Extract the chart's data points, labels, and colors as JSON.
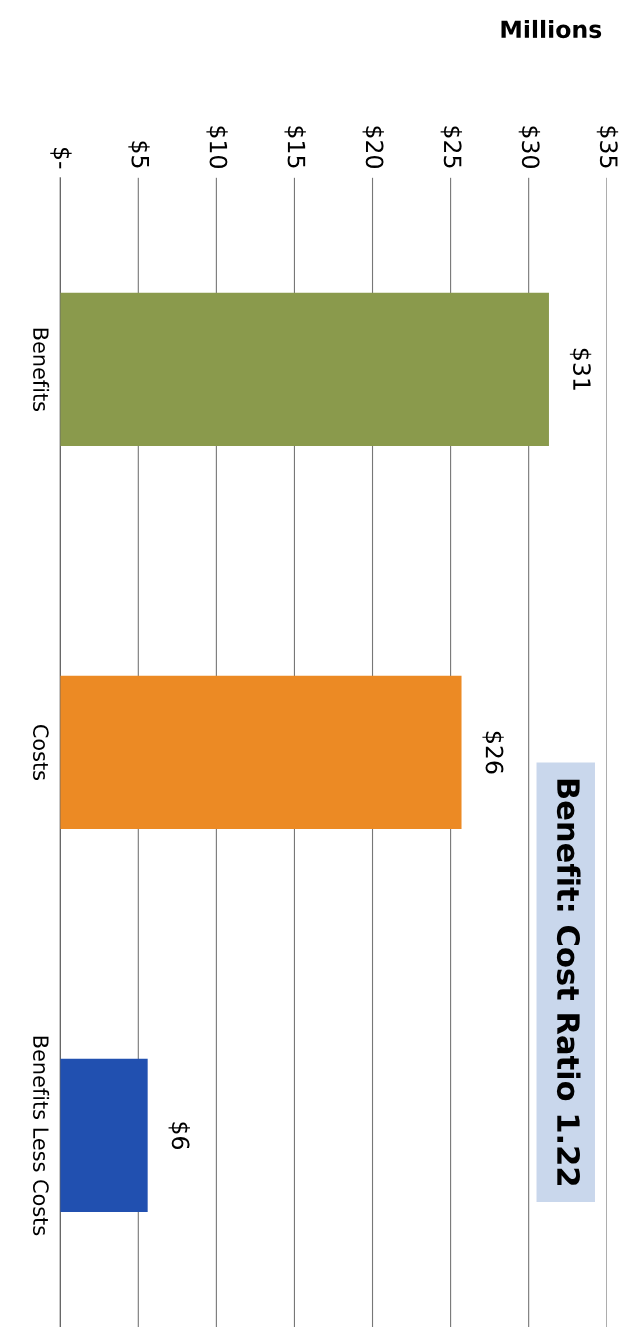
{
  "chart_data": {
    "type": "bar",
    "orientation": "horizontal",
    "xlabel": "Millions",
    "categories": [
      "Benefits",
      "Costs",
      "Benefits Less Costs"
    ],
    "values": [
      31.3,
      25.7,
      5.6
    ],
    "colors": [
      "#8a9a4c",
      "#ec8a24",
      "#2150b0"
    ],
    "value_labels": [
      "$31",
      "$26",
      "$6"
    ],
    "xlim": [
      0,
      35
    ],
    "xticks": [
      {
        "value": 0,
        "label": "$-"
      },
      {
        "value": 5,
        "label": "$5"
      },
      {
        "value": 10,
        "label": "$10"
      },
      {
        "value": 15,
        "label": "$15"
      },
      {
        "value": 20,
        "label": "$20"
      },
      {
        "value": 25,
        "label": "$25"
      },
      {
        "value": 30,
        "label": "$30"
      },
      {
        "value": 35,
        "label": "$35"
      }
    ],
    "grid": "x",
    "annotations": [
      "Benefit: Cost Ratio 1.22"
    ]
  }
}
